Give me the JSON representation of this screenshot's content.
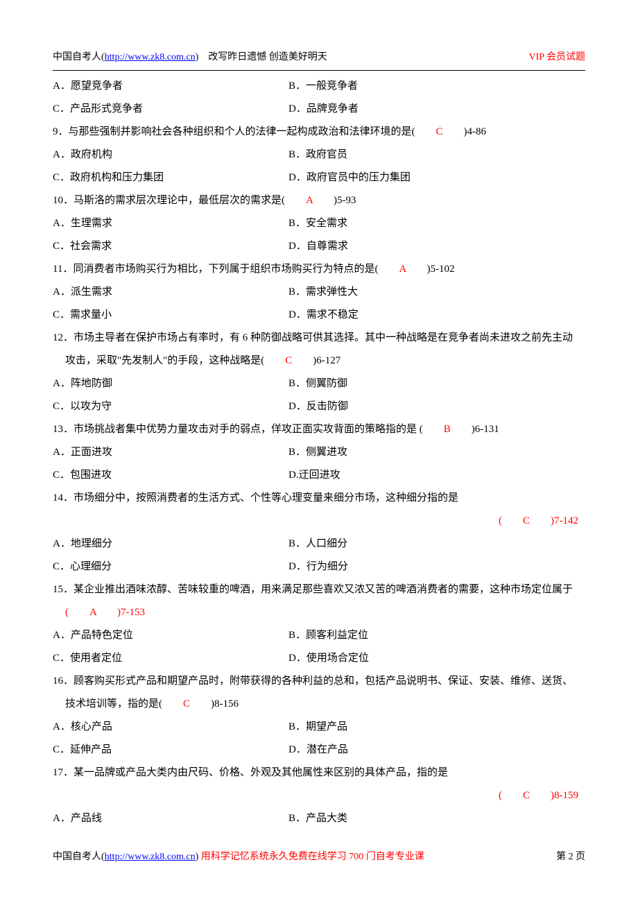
{
  "header": {
    "site_name": "中国自考人",
    "url_label": "http://www.zk8.com.cn",
    "slogan": "改写昨日遗憾 创造美好明天",
    "vip": "VIP 会员试题"
  },
  "q8": {
    "a": "A．愿望竞争者",
    "b": "B．一般竞争者",
    "c": "C．产品形式竞争者",
    "d": "D．品牌竞争者"
  },
  "q9": {
    "stem": "9．与那些强制并影响社会各种组织和个人的法律一起构成政治和法律环境的是(",
    "ans": "C",
    "ref": ")4-86",
    "a": "A．政府机构",
    "b": "B．政府官员",
    "c": "C．政府机构和压力集团",
    "d": "D．政府官员中的压力集团"
  },
  "q10": {
    "stem": "10．马斯洛的需求层次理论中，最低层次的需求是(",
    "ans": "A",
    "ref": ")5-93",
    "a": "A．生理需求",
    "b": "B．安全需求",
    "c": "C．社会需求",
    "d": "D．自尊需求"
  },
  "q11": {
    "stem": "11．同消费者市场购买行为相比，下列属于组织市场购买行为特点的是(",
    "ans": "A",
    "ref": ")5-102",
    "a": "A．派生需求",
    "b": "B．需求弹性大",
    "c": "C．需求量小",
    "d": "D．需求不稳定"
  },
  "q12": {
    "stem1": "12．市场主导者在保护市场占有率时，有 6 种防御战略可供其选择。其中一种战略是在竞争者尚未进攻之前先主动",
    "stem2": "攻击，采取\"先发制人\"的手段，这种战略是(",
    "ans": "C",
    "ref": ")6-127",
    "a": "A．阵地防御",
    "b": "B．侧翼防御",
    "c": "C．以攻为守",
    "d": "D．反击防御"
  },
  "q13": {
    "stem": "13．市场挑战者集中优势力量攻击对手的弱点，佯攻正面实攻背面的策略指的是 (",
    "ans": "B",
    "ref": ")6-131",
    "a": "A．正面进攻",
    "b": "B．侧翼进攻",
    "c": "C．包围进攻",
    "d": "D.迂回进攻"
  },
  "q14": {
    "stem": "14．市场细分中，按照消费者的生活方式、个性等心理变量来细分市场，这种细分指的是",
    "ans_line": "(　　C　　)7-142",
    "a": "A．地理细分",
    "b": "B．人口细分",
    "c": "C．心理细分",
    "d": "D．行为细分"
  },
  "q15": {
    "stem": "15．某企业推出酒味浓醇、苦味较重的啤酒，用来满足那些喜欢又浓又苦的啤酒消费者的需要，这种市场定位属于",
    "ans_line_pre": "(",
    "ans": "A",
    "ans_line_post": ")7-153",
    "a": "A．产品特色定位",
    "b": "B．顾客利益定位",
    "c": "C．使用者定位",
    "d": "D．使用场合定位"
  },
  "q16": {
    "stem1": "16．顾客购买形式产品和期望产品时，附带获得的各种利益的总和，包括产品说明书、保证、安装、维修、送货、",
    "stem2": "技术培训等，指的是(",
    "ans": "C",
    "ref": ")8-156",
    "a": "A．核心产品",
    "b": "B．期望产品",
    "c": "C．延伸产品",
    "d": "D．潜在产品"
  },
  "q17": {
    "stem": "17．某一品牌或产品大类内由尺码、价格、外观及其他属性来区别的具体产品，指的是",
    "ans_line": "(　　C　　)8-159",
    "a": "A．产品线",
    "b": "B．产品大类"
  },
  "footer": {
    "site_name": "中国自考人",
    "url_label": "http://www.zk8.com.cn",
    "slogan": "用科学记忆系统永久免费在线学习 700 门自考专业课",
    "page": "第 2 页"
  }
}
